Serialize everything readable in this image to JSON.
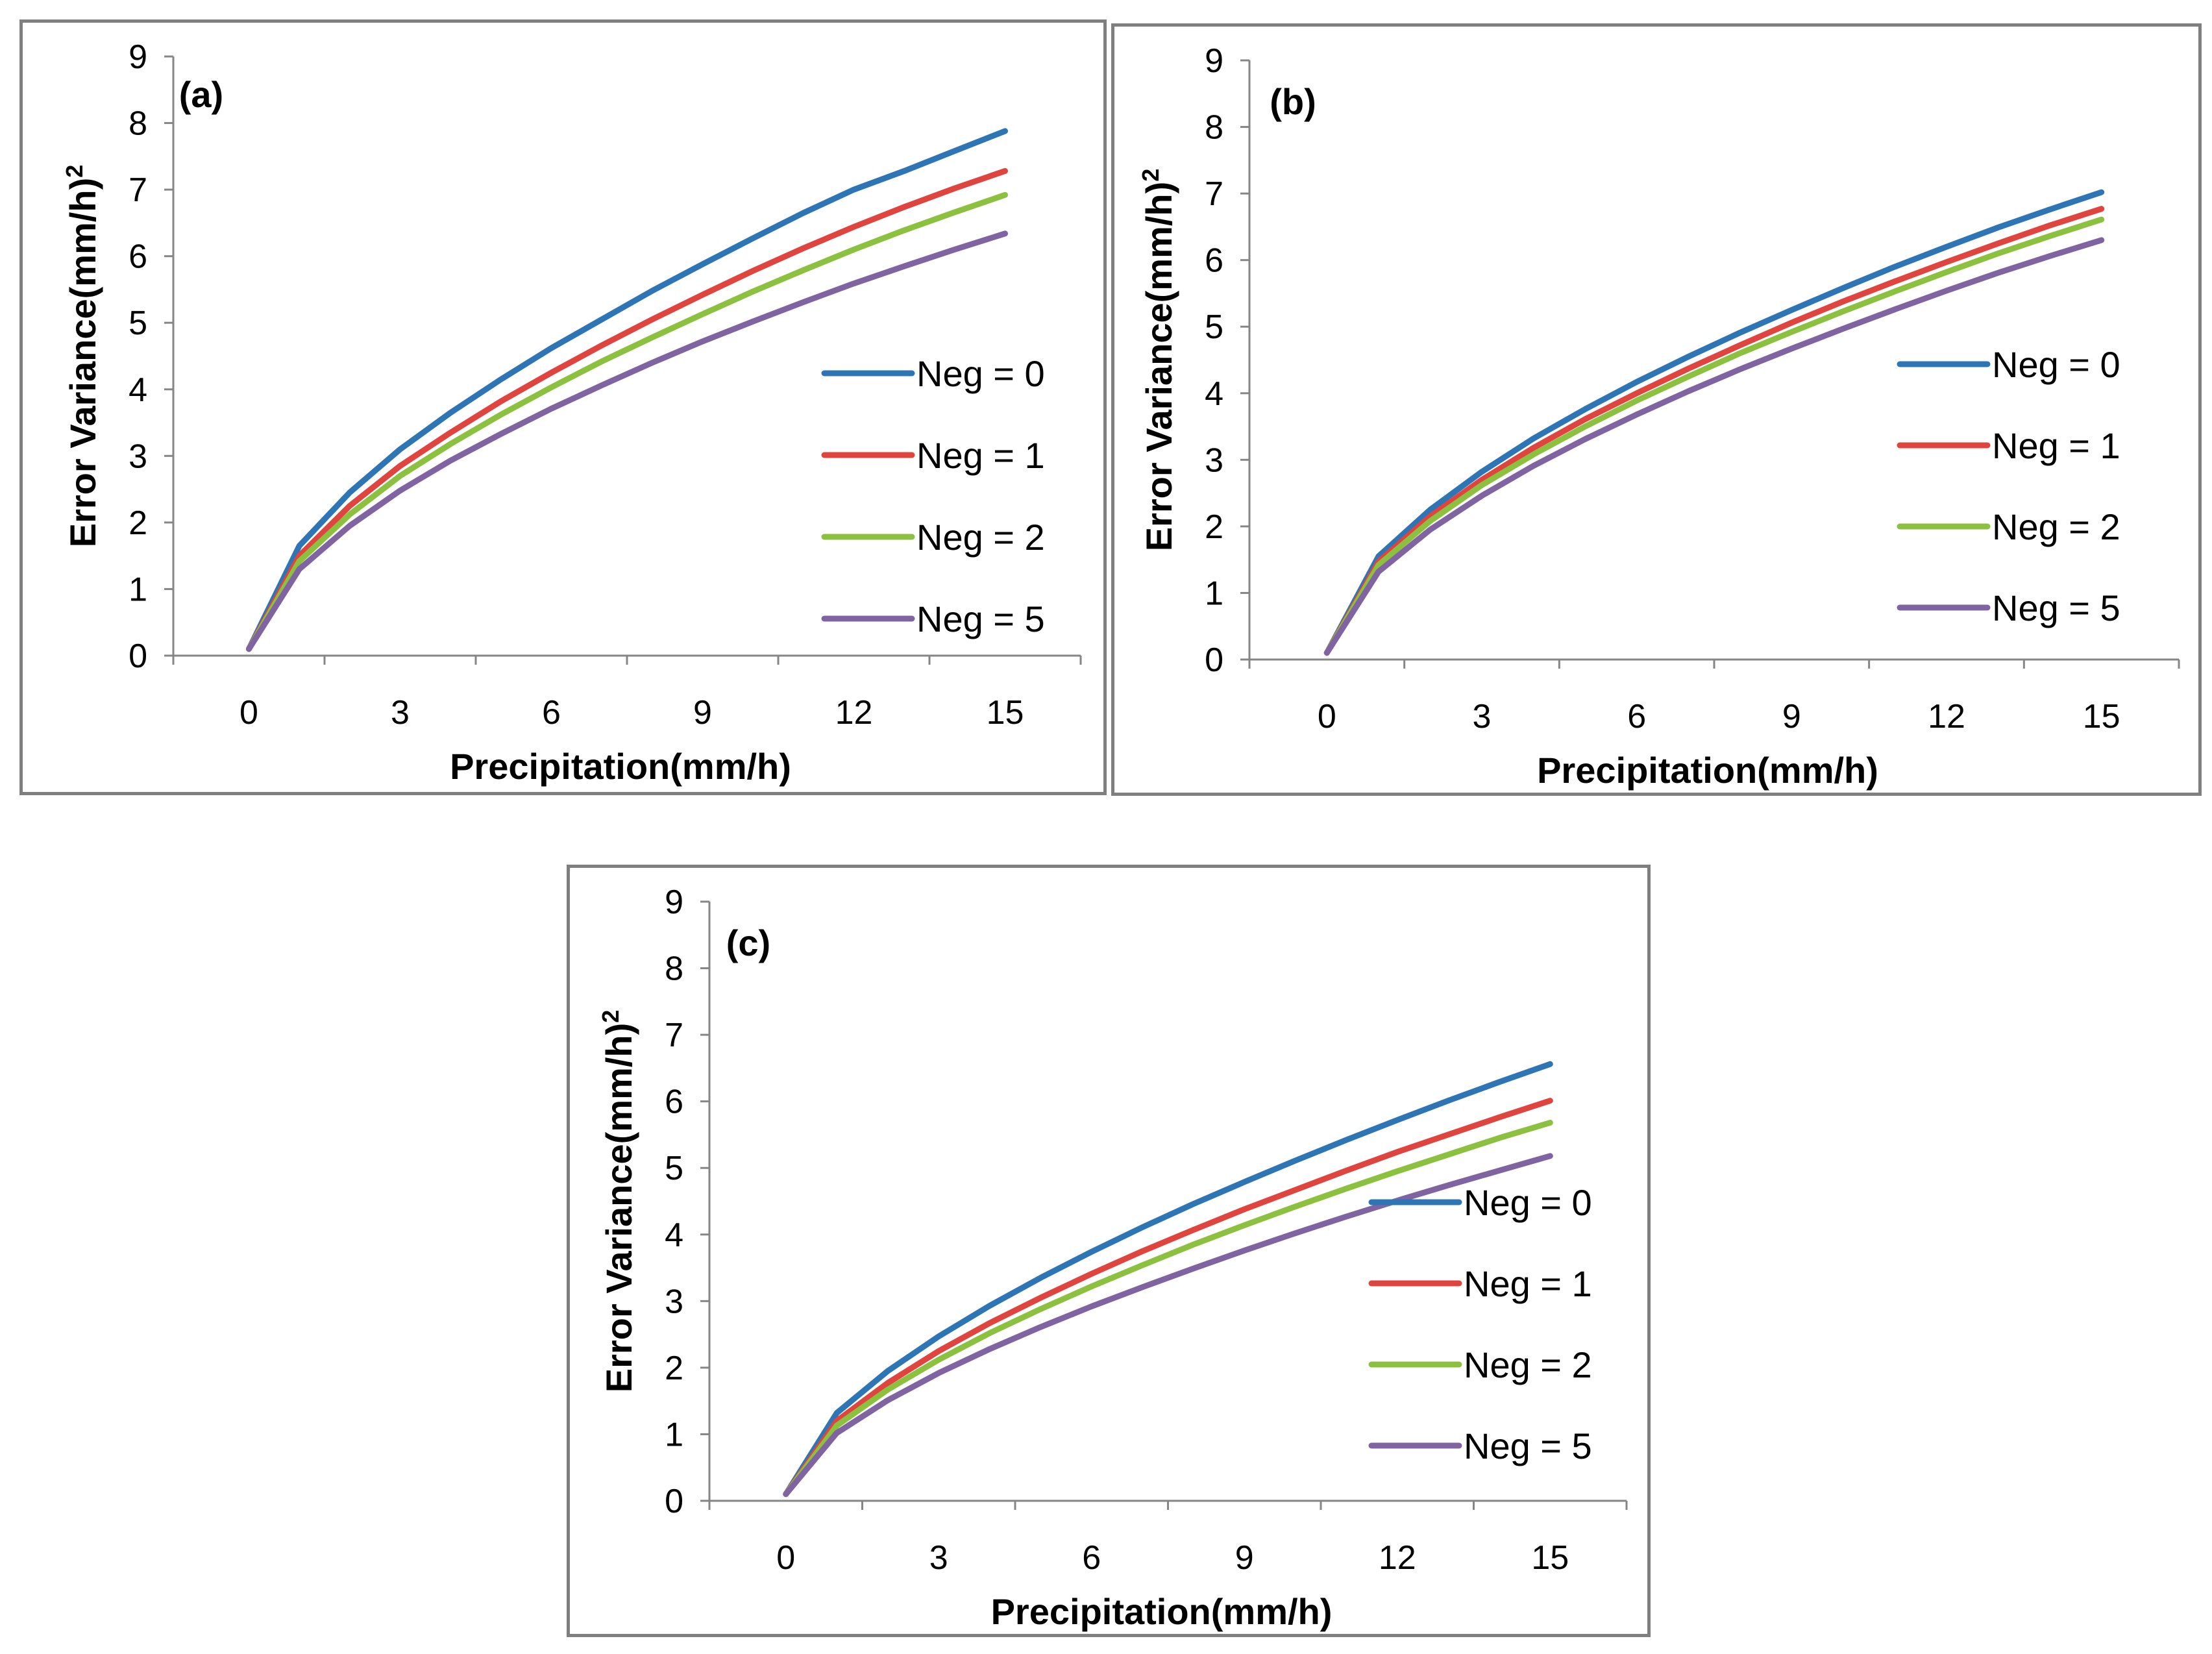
{
  "chart_data": [
    {
      "type": "line",
      "panel": "a",
      "label": "(a)",
      "xlabel": "Precipitation(mm/h)",
      "ylabel": "Error Variance(mm/h)",
      "ylabel_sup": "2",
      "xlim": [
        -1.5,
        16.5
      ],
      "ylim": [
        0,
        9
      ],
      "xticks": [
        0,
        3,
        6,
        9,
        12,
        15
      ],
      "yticks": [
        0,
        1,
        2,
        3,
        4,
        5,
        6,
        7,
        8,
        9
      ],
      "legend_position": "right",
      "x": [
        0,
        1,
        2,
        3,
        4,
        5,
        6,
        7,
        8,
        9,
        10,
        11,
        12,
        13,
        14,
        15
      ],
      "series": [
        {
          "name": "Neg = 0",
          "color": "#2e75b6",
          "values": [
            0.1,
            1.65,
            2.45,
            3.1,
            3.65,
            4.15,
            4.62,
            5.05,
            5.48,
            5.88,
            6.27,
            6.65,
            7.0,
            7.28,
            7.58,
            7.88
          ]
        },
        {
          "name": "Neg = 1",
          "color": "#e0443e",
          "values": [
            0.1,
            1.5,
            2.25,
            2.85,
            3.35,
            3.82,
            4.25,
            4.66,
            5.05,
            5.42,
            5.78,
            6.12,
            6.44,
            6.74,
            7.02,
            7.28
          ]
        },
        {
          "name": "Neg = 2",
          "color": "#8cc13f",
          "values": [
            0.1,
            1.42,
            2.12,
            2.7,
            3.18,
            3.62,
            4.03,
            4.42,
            4.78,
            5.13,
            5.47,
            5.79,
            6.1,
            6.39,
            6.66,
            6.92
          ]
        },
        {
          "name": "Neg = 5",
          "color": "#8064a2",
          "values": [
            0.1,
            1.3,
            1.95,
            2.48,
            2.93,
            3.33,
            3.71,
            4.06,
            4.4,
            4.72,
            5.02,
            5.31,
            5.59,
            5.85,
            6.1,
            6.34
          ]
        }
      ]
    },
    {
      "type": "line",
      "panel": "b",
      "label": "(b)",
      "xlabel": "Precipitation(mm/h)",
      "ylabel": "Error Variance(mm/h)",
      "ylabel_sup": "2",
      "xlim": [
        -1.5,
        16.5
      ],
      "ylim": [
        0,
        9
      ],
      "xticks": [
        0,
        3,
        6,
        9,
        12,
        15
      ],
      "yticks": [
        0,
        1,
        2,
        3,
        4,
        5,
        6,
        7,
        8,
        9
      ],
      "legend_position": "right",
      "x": [
        0,
        1,
        2,
        3,
        4,
        5,
        6,
        7,
        8,
        9,
        10,
        11,
        12,
        13,
        14,
        15
      ],
      "series": [
        {
          "name": "Neg = 0",
          "color": "#2e75b6",
          "values": [
            0.1,
            1.55,
            2.25,
            2.82,
            3.32,
            3.76,
            4.17,
            4.55,
            4.91,
            5.25,
            5.58,
            5.9,
            6.2,
            6.49,
            6.76,
            7.02
          ]
        },
        {
          "name": "Neg = 1",
          "color": "#e0443e",
          "values": [
            0.1,
            1.47,
            2.15,
            2.7,
            3.18,
            3.61,
            4.0,
            4.37,
            4.72,
            5.06,
            5.38,
            5.68,
            5.97,
            6.25,
            6.52,
            6.77
          ]
        },
        {
          "name": "Neg = 2",
          "color": "#8cc13f",
          "values": [
            0.1,
            1.42,
            2.08,
            2.62,
            3.08,
            3.5,
            3.89,
            4.25,
            4.6,
            4.92,
            5.23,
            5.53,
            5.82,
            6.1,
            6.36,
            6.61
          ]
        },
        {
          "name": "Neg = 5",
          "color": "#8064a2",
          "values": [
            0.1,
            1.32,
            1.95,
            2.46,
            2.91,
            3.31,
            3.68,
            4.03,
            4.36,
            4.67,
            4.97,
            5.26,
            5.54,
            5.81,
            6.06,
            6.3
          ]
        }
      ]
    },
    {
      "type": "line",
      "panel": "c",
      "label": "(c)",
      "xlabel": "Precipitation(mm/h)",
      "ylabel": "Error Variance(mm/h)",
      "ylabel_sup": "2",
      "xlim": [
        -1.5,
        16.5
      ],
      "ylim": [
        0,
        9
      ],
      "xticks": [
        0,
        3,
        6,
        9,
        12,
        15
      ],
      "yticks": [
        0,
        1,
        2,
        3,
        4,
        5,
        6,
        7,
        8,
        9
      ],
      "legend_position": "right",
      "x": [
        0,
        1,
        2,
        3,
        4,
        5,
        6,
        7,
        8,
        9,
        10,
        11,
        12,
        13,
        14,
        15
      ],
      "series": [
        {
          "name": "Neg = 0",
          "color": "#2e75b6",
          "values": [
            0.1,
            1.32,
            1.95,
            2.47,
            2.93,
            3.35,
            3.74,
            4.11,
            4.46,
            4.79,
            5.11,
            5.42,
            5.72,
            6.01,
            6.29,
            6.56
          ]
        },
        {
          "name": "Neg = 1",
          "color": "#e0443e",
          "values": [
            0.1,
            1.2,
            1.77,
            2.25,
            2.67,
            3.05,
            3.41,
            3.75,
            4.07,
            4.38,
            4.67,
            4.96,
            5.24,
            5.5,
            5.76,
            6.01
          ]
        },
        {
          "name": "Neg = 2",
          "color": "#8cc13f",
          "values": [
            0.1,
            1.13,
            1.67,
            2.12,
            2.52,
            2.88,
            3.22,
            3.54,
            3.85,
            4.14,
            4.42,
            4.69,
            4.95,
            5.2,
            5.45,
            5.68
          ]
        },
        {
          "name": "Neg = 5",
          "color": "#8064a2",
          "values": [
            0.1,
            1.02,
            1.51,
            1.92,
            2.28,
            2.61,
            2.92,
            3.21,
            3.49,
            3.76,
            4.02,
            4.27,
            4.51,
            4.74,
            4.96,
            5.18
          ]
        }
      ]
    }
  ]
}
